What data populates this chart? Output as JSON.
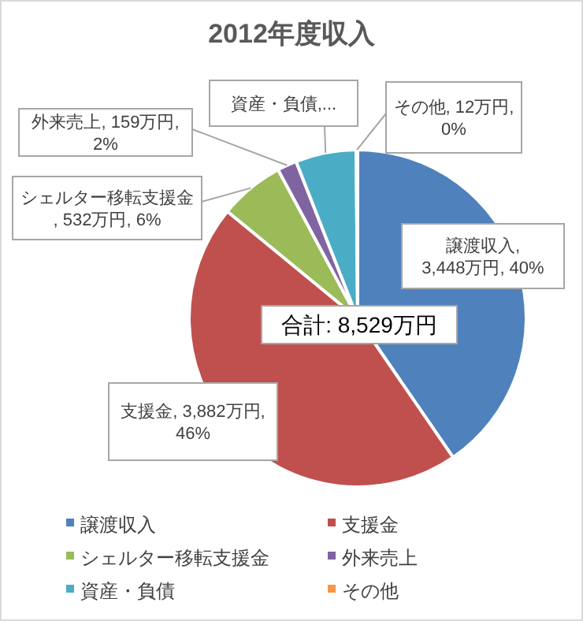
{
  "chart_data": {
    "type": "pie",
    "title": "2012年度収入",
    "categories": [
      "譲渡収入",
      "支援金",
      "シェルター移転支援金",
      "外来売上",
      "資産・負債",
      "その他"
    ],
    "values": [
      3448,
      3882,
      532,
      159,
      496,
      12
    ],
    "colors": [
      "#4f81bd",
      "#c0504d",
      "#9bbb59",
      "#8064a2",
      "#4bacc6",
      "#f79646"
    ],
    "value_labels": [
      "譲渡収入, 3,448万円, 40%",
      "支援金, 3,882万円, 46%",
      "シェルター移転支援金, 532万円, 6%",
      "外来売上, 159万円, 2%",
      "資産・負債,...",
      "その他, 12万円, 0%"
    ],
    "annotations": [
      "合計: 8,529万円"
    ],
    "legend": "bottom"
  }
}
